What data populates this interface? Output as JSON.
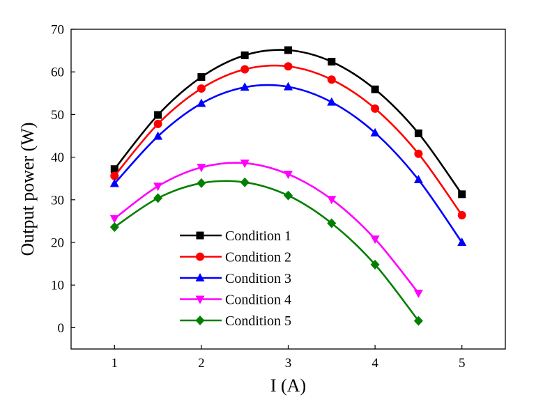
{
  "chart_data": {
    "type": "line",
    "title": "",
    "xlabel": "I (A)",
    "ylabel": "Output power (W)",
    "xlim": [
      0.5,
      5.5
    ],
    "ylim": [
      -5,
      70
    ],
    "xticks": [
      1,
      2,
      3,
      4,
      5
    ],
    "yticks": [
      0,
      10,
      20,
      30,
      40,
      50,
      60,
      70
    ],
    "grid": false,
    "legend_position": "bottom-left",
    "series": [
      {
        "name": "Condition 1",
        "color": "#000000",
        "marker": "square",
        "x": [
          1,
          1.5,
          2,
          2.5,
          3,
          3.5,
          4,
          4.5,
          5
        ],
        "y": [
          37.2,
          49.9,
          58.8,
          63.9,
          65.1,
          62.4,
          55.9,
          45.6,
          31.3
        ]
      },
      {
        "name": "Condition 2",
        "color": "#ff0000",
        "marker": "circle",
        "x": [
          1,
          1.5,
          2,
          2.5,
          3,
          3.5,
          4,
          4.5,
          5
        ],
        "y": [
          35.6,
          47.8,
          56.1,
          60.6,
          61.3,
          58.2,
          51.4,
          40.8,
          26.4
        ]
      },
      {
        "name": "Condition 3",
        "color": "#0000ff",
        "marker": "triangle-up",
        "x": [
          1,
          1.5,
          2,
          2.5,
          3,
          3.5,
          4,
          4.5,
          5
        ],
        "y": [
          33.8,
          44.9,
          52.6,
          56.4,
          56.5,
          52.9,
          45.7,
          34.7,
          20.0
        ]
      },
      {
        "name": "Condition 4",
        "color": "#ff00ff",
        "marker": "triangle-down",
        "x": [
          1,
          1.5,
          2,
          2.5,
          3,
          3.5,
          4,
          4.5
        ],
        "y": [
          25.6,
          33.2,
          37.6,
          38.6,
          36.0,
          30.1,
          20.8,
          8.1
        ]
      },
      {
        "name": "Condition 5",
        "color": "#008000",
        "marker": "diamond",
        "x": [
          1,
          1.5,
          2,
          2.5,
          3,
          3.5,
          4,
          4.5
        ],
        "y": [
          23.6,
          30.4,
          33.9,
          34.1,
          31.0,
          24.5,
          14.8,
          1.6
        ]
      }
    ]
  }
}
